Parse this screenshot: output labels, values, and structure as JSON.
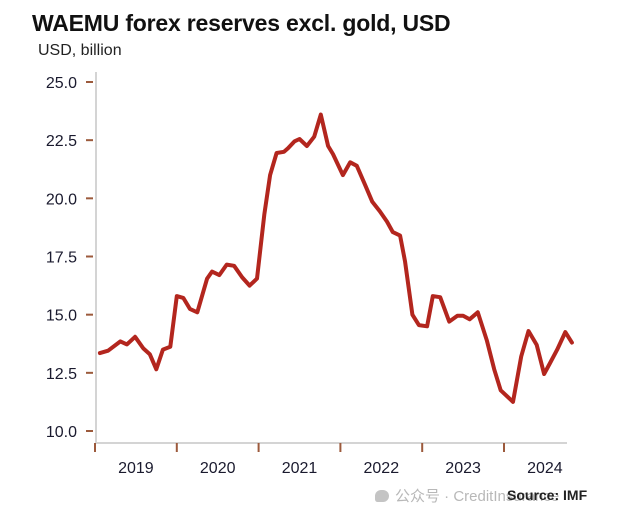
{
  "chart_data": {
    "type": "line",
    "title": "WAEMU forex reserves excl. gold, USD",
    "subtitle": "USD, billion",
    "xlabel": "",
    "ylabel": "USD, billion",
    "xlim": [
      2019.0,
      2024.9
    ],
    "ylim": [
      10.0,
      25.0
    ],
    "y_ticks": [
      25.0,
      22.5,
      20.0,
      17.5,
      15.0,
      12.5,
      10.0
    ],
    "y_tick_labels": [
      "25.0",
      "22.5",
      "20.0",
      "17.5",
      "15.0",
      "12.5",
      "10.0"
    ],
    "x_ticks": [
      2019,
      2020,
      2021,
      2022,
      2023,
      2024
    ],
    "x_tick_labels": [
      "2019",
      "2020",
      "2021",
      "2022",
      "2023",
      "2024"
    ],
    "grid": false,
    "legend": "none",
    "series": [
      {
        "name": "WAEMU forex reserves excl. gold",
        "color": "#b3261e",
        "x": [
          2019.06,
          2019.16,
          2019.31,
          2019.39,
          2019.49,
          2019.59,
          2019.67,
          2019.75,
          2019.83,
          2019.92,
          2020.0,
          2020.08,
          2020.16,
          2020.25,
          2020.37,
          2020.43,
          2020.52,
          2020.61,
          2020.7,
          2020.8,
          2020.89,
          2020.98,
          2021.07,
          2021.14,
          2021.22,
          2021.31,
          2021.36,
          2021.44,
          2021.5,
          2021.59,
          2021.68,
          2021.76,
          2021.85,
          2021.91,
          2022.03,
          2022.12,
          2022.2,
          2022.3,
          2022.39,
          2022.48,
          2022.57,
          2022.64,
          2022.73,
          2022.79,
          2022.88,
          2022.96,
          2023.06,
          2023.13,
          2023.22,
          2023.33,
          2023.43,
          2023.5,
          2023.58,
          2023.68,
          2023.79,
          2023.88,
          2023.96,
          2024.11,
          2024.21,
          2024.3,
          2024.4,
          2024.49,
          2024.56,
          2024.65,
          2024.75,
          2024.83
        ],
        "values": [
          13.35,
          13.45,
          13.85,
          13.72,
          14.05,
          13.55,
          13.3,
          12.65,
          13.5,
          13.62,
          15.8,
          15.72,
          15.25,
          15.1,
          16.55,
          16.85,
          16.7,
          17.15,
          17.1,
          16.6,
          16.25,
          16.55,
          19.3,
          21.0,
          21.95,
          22.0,
          22.15,
          22.45,
          22.55,
          22.25,
          22.65,
          23.6,
          22.25,
          21.9,
          21.0,
          21.55,
          21.4,
          20.6,
          19.85,
          19.45,
          19.0,
          18.55,
          18.4,
          17.3,
          15.0,
          14.55,
          14.5,
          15.8,
          15.75,
          14.7,
          14.95,
          14.95,
          14.8,
          15.1,
          13.9,
          12.65,
          11.75,
          11.25,
          13.2,
          14.3,
          13.7,
          12.45,
          12.9,
          13.5,
          14.25,
          13.8
        ]
      }
    ],
    "source": "Source: IMF"
  },
  "colors": {
    "line": "#b3261e",
    "axis": "#d4d4d4",
    "tick": "#9c5a3c"
  },
  "watermark": "公众号 · CreditInsurance"
}
